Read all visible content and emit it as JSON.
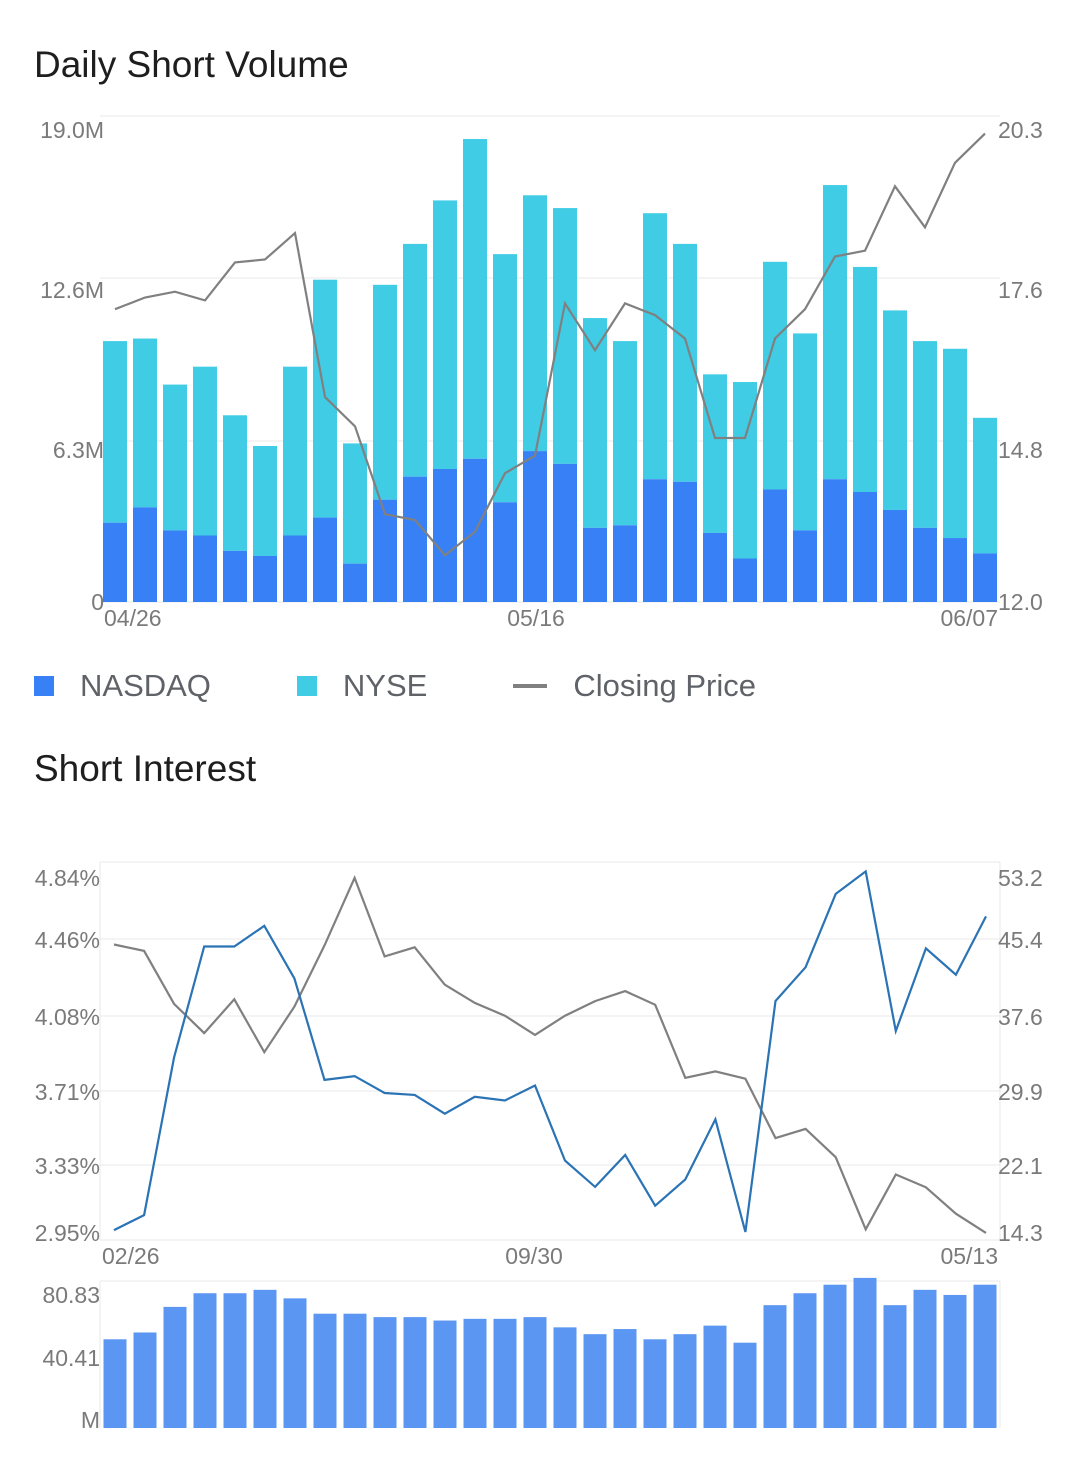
{
  "titles": {
    "daily_short_volume": "Daily Short Volume",
    "short_interest": "Short Interest"
  },
  "legend": {
    "nasdaq": "NASDAQ",
    "nyse": "NYSE",
    "closing_price": "Closing Price"
  },
  "colors": {
    "nasdaq": "#3880f5",
    "nyse": "#40cce5",
    "closing_price": "#808080",
    "short_interest_line": "#2a73b5",
    "volume_bars": "#5b96f2",
    "grid": "#e8e8e8",
    "tick_text": "#7a7a7a"
  },
  "chart_data": [
    {
      "type": "bar",
      "title": "Daily Short Volume",
      "stacked": true,
      "y_left_ticks": [
        "19.0M",
        "12.6M",
        "6.3M",
        "0"
      ],
      "y_left_range": [
        0,
        19.0
      ],
      "y_right_ticks": [
        "20.3",
        "17.6",
        "14.8",
        "12.0"
      ],
      "y_right_range": [
        12.0,
        20.3
      ],
      "x_tick_labels": [
        "04/26",
        "05/16",
        "06/07"
      ],
      "x_tick_indices": [
        0,
        14,
        29
      ],
      "series": [
        {
          "name": "NASDAQ",
          "values": [
            3.1,
            3.7,
            2.8,
            2.6,
            2.0,
            1.8,
            2.6,
            3.3,
            1.5,
            4.0,
            4.9,
            5.2,
            5.6,
            3.9,
            5.9,
            5.4,
            2.9,
            3.0,
            4.8,
            4.7,
            2.7,
            1.7,
            4.4,
            2.8,
            4.8,
            4.3,
            3.6,
            2.9,
            2.5,
            1.9
          ]
        },
        {
          "name": "NYSE",
          "values": [
            7.1,
            6.6,
            5.7,
            6.6,
            5.3,
            4.3,
            6.6,
            9.3,
            4.7,
            8.4,
            9.1,
            10.5,
            12.5,
            9.7,
            10.0,
            10.0,
            8.2,
            7.2,
            10.4,
            9.3,
            6.2,
            6.9,
            8.9,
            7.7,
            11.5,
            8.8,
            7.8,
            7.3,
            7.4,
            5.3
          ]
        },
        {
          "name": "Closing Price",
          "values": [
            17.0,
            17.2,
            17.3,
            17.15,
            17.8,
            17.85,
            18.3,
            15.5,
            15.0,
            13.5,
            13.4,
            12.8,
            13.2,
            14.2,
            14.5,
            17.1,
            16.3,
            17.1,
            16.9,
            16.5,
            14.8,
            14.8,
            16.5,
            17.0,
            17.9,
            18.0,
            19.1,
            18.4,
            19.5,
            20.0
          ]
        }
      ]
    },
    {
      "type": "line",
      "title": "Short Interest",
      "y_left_ticks": [
        "4.84%",
        "4.46%",
        "4.08%",
        "3.71%",
        "3.33%",
        "2.95%"
      ],
      "y_left_range": [
        2.95,
        4.84
      ],
      "y_right_ticks": [
        "53.2",
        "45.4",
        "37.6",
        "29.9",
        "22.1",
        "14.3"
      ],
      "y_right_range": [
        14.3,
        53.2
      ],
      "x_tick_labels": [
        "02/26",
        "09/30",
        "05/13"
      ],
      "x_tick_indices": [
        0,
        14,
        29
      ],
      "series": [
        {
          "name": "Short Interest %",
          "values": [
            2.96,
            3.04,
            3.88,
            4.47,
            4.47,
            4.58,
            4.3,
            3.76,
            3.78,
            3.69,
            3.68,
            3.58,
            3.67,
            3.65,
            3.73,
            3.33,
            3.19,
            3.36,
            3.09,
            3.23,
            3.55,
            2.95,
            4.18,
            4.36,
            4.75,
            4.87,
            4.02,
            4.46,
            4.32,
            4.63
          ]
        },
        {
          "name": "Closing Price",
          "values": [
            45.8,
            45.1,
            39.3,
            36.1,
            39.8,
            34.0,
            39.0,
            45.7,
            53.1,
            44.5,
            45.5,
            41.4,
            39.4,
            38.0,
            35.9,
            38.0,
            39.6,
            40.7,
            39.2,
            31.2,
            31.9,
            31.1,
            24.6,
            25.6,
            22.5,
            14.6,
            20.6,
            19.2,
            16.3,
            14.2
          ]
        }
      ]
    },
    {
      "type": "bar",
      "title": "",
      "y_ticks": [
        "80.83",
        "40.41",
        "M"
      ],
      "ylim": [
        0,
        85.0
      ],
      "values": [
        52,
        56,
        71,
        79,
        79,
        81,
        76,
        67,
        67,
        65,
        65,
        63,
        64,
        64,
        65,
        59,
        55,
        58,
        52,
        55,
        60,
        50,
        72,
        79,
        84,
        88,
        72,
        81,
        78,
        84
      ]
    }
  ]
}
